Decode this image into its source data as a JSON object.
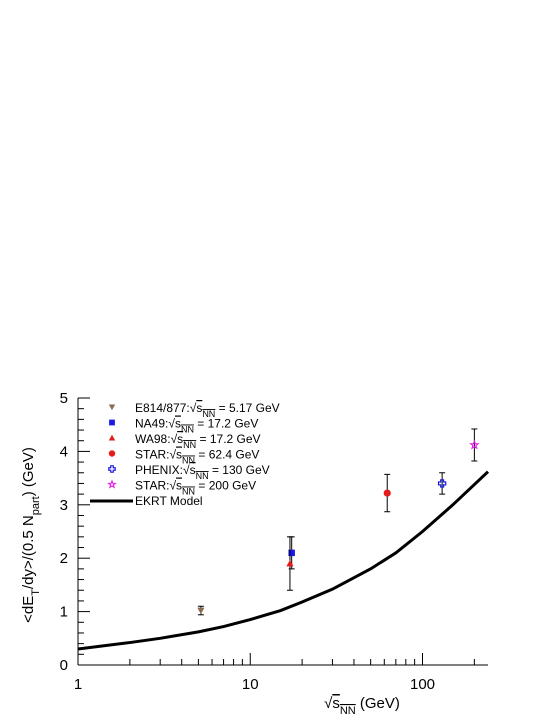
{
  "chart_data": {
    "type": "scatter",
    "xscale": "log",
    "xlim": [
      1,
      240
    ],
    "ylim": [
      0,
      5
    ],
    "xticks": [
      1,
      10,
      100
    ],
    "xtick_labels": [
      "1",
      "10",
      "100"
    ],
    "yticks": [
      0,
      1,
      2,
      3,
      4,
      5
    ],
    "ytick_labels": [
      "0",
      "1",
      "2",
      "3",
      "4",
      "5"
    ],
    "xlabel": {
      "pre": "",
      "root": "s",
      "sub": "NN",
      "post": " (GeV)"
    },
    "ylabel": {
      "p1": "<dE",
      "s1": "T",
      "p2": "/dy>/(0.5 N",
      "s2": "part",
      "p3": ") (GeV)"
    },
    "grid": false,
    "legend_position": "top-left",
    "series": [
      {
        "name": "E814/877:",
        "energy_text": "= 5.17 GeV",
        "sub": "NN",
        "marker": "triangle-down",
        "color": "#8b6b50",
        "points": [
          {
            "x": 5.17,
            "y": 1.02,
            "err": 0.08
          }
        ]
      },
      {
        "name": "NA49:",
        "energy_text": "= 17.2 GeV",
        "sub": "NN",
        "marker": "square",
        "color": "#1a1ae6",
        "points": [
          {
            "x": 17.4,
            "y": 2.1,
            "err": 0.3
          }
        ]
      },
      {
        "name": "WA98:",
        "energy_text": "= 17.2 GeV",
        "sub": "NN",
        "marker": "triangle-up",
        "color": "#e61a1a",
        "points": [
          {
            "x": 17.0,
            "y": 1.9,
            "err": 0.5
          }
        ]
      },
      {
        "name": "STAR:",
        "energy_text": "= 62.4 GeV",
        "sub": "NN",
        "marker": "circle",
        "color": "#e61a1a",
        "points": [
          {
            "x": 62.4,
            "y": 3.22,
            "err": 0.35
          }
        ]
      },
      {
        "name": "PHENIX:",
        "energy_text": "= 130 GeV",
        "sub": "NN",
        "marker": "open-cross",
        "color": "#1a1ae6",
        "points": [
          {
            "x": 130,
            "y": 3.4,
            "err": 0.2
          }
        ]
      },
      {
        "name": "STAR:",
        "energy_text": "= 200 GeV",
        "sub": "NN",
        "marker": "open-star",
        "color": "#e61ae6",
        "points": [
          {
            "x": 200,
            "y": 4.12,
            "err": 0.3
          }
        ]
      },
      {
        "name": "EKRT Model",
        "marker": "line",
        "color": "#000000",
        "curve": [
          {
            "x": 1,
            "y": 0.3
          },
          {
            "x": 2,
            "y": 0.42
          },
          {
            "x": 3,
            "y": 0.5
          },
          {
            "x": 5,
            "y": 0.62
          },
          {
            "x": 7,
            "y": 0.72
          },
          {
            "x": 10,
            "y": 0.85
          },
          {
            "x": 15,
            "y": 1.02
          },
          {
            "x": 20,
            "y": 1.18
          },
          {
            "x": 30,
            "y": 1.42
          },
          {
            "x": 50,
            "y": 1.8
          },
          {
            "x": 70,
            "y": 2.1
          },
          {
            "x": 100,
            "y": 2.5
          },
          {
            "x": 150,
            "y": 3.0
          },
          {
            "x": 240,
            "y": 3.62
          }
        ]
      }
    ]
  }
}
